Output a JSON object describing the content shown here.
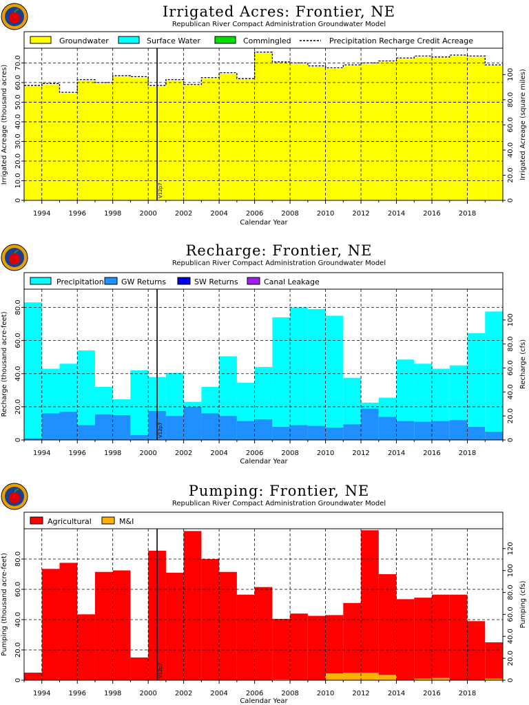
{
  "logo_icon": "apple-logo-icon",
  "chart_data": [
    {
      "type": "bar",
      "title": "Irrigated Acres: Frontier, NE",
      "subtitle": "Republican River Compact Administration Groundwater Model",
      "xlabel": "Calendar Year",
      "ylabel": "Irrigated Acreage (thousand acres)",
      "ylabel_right": "Irrigated Acreage (square miles)",
      "xlim": [
        1993,
        2020
      ],
      "ylim": [
        0,
        77.5
      ],
      "ylim_right": [
        0,
        121
      ],
      "yticks": [
        0,
        10,
        20,
        30,
        40,
        50,
        60,
        70
      ],
      "ytick_labels": [
        "0",
        "10.0",
        "20.0",
        "30.0",
        "40.0",
        "50.0",
        "60.0",
        "70.0"
      ],
      "yticks_right": [
        0,
        20,
        40,
        60,
        80,
        100
      ],
      "ytick_labels_right": [
        "0",
        "20.0",
        "40.0",
        "60.0",
        "80.0",
        "100"
      ],
      "xticks": [
        1994,
        1996,
        1998,
        2000,
        2002,
        2004,
        2006,
        2008,
        2010,
        2012,
        2014,
        2016,
        2018
      ],
      "marker": {
        "x": 2000.5,
        "label": "V12p7"
      },
      "grid": true,
      "legend_placement": "top",
      "legend": [
        {
          "label": "Groundwater",
          "color": "#ffff00",
          "kind": "box"
        },
        {
          "label": "Surface Water",
          "color": "#00ffff",
          "kind": "box"
        },
        {
          "label": "Commingled",
          "color": "#00dd00",
          "kind": "box"
        },
        {
          "label": "Precipitation Recharge Credit Acreage",
          "color": "#000000",
          "kind": "dash"
        }
      ],
      "years": [
        1993,
        1994,
        1995,
        1996,
        1997,
        1998,
        1999,
        2000,
        2001,
        2002,
        2003,
        2004,
        2005,
        2006,
        2007,
        2008,
        2009,
        2010,
        2011,
        2012,
        2013,
        2014,
        2015,
        2016,
        2017,
        2018,
        2019
      ],
      "series": [
        {
          "name": "Groundwater",
          "color": "#ffff00",
          "values": [
            58.0,
            59.0,
            54.5,
            61.0,
            59.5,
            63.0,
            62.5,
            58.0,
            61.0,
            58.5,
            62.0,
            64.5,
            61.5,
            75.0,
            70.0,
            69.5,
            68.0,
            67.0,
            68.5,
            69.5,
            70.5,
            72.0,
            73.0,
            72.5,
            73.5,
            73.0,
            68.5
          ]
        },
        {
          "name": "Surface Water",
          "color": "#00ffff",
          "values": [
            0,
            0,
            0,
            0,
            0,
            0,
            0,
            0,
            0,
            0,
            0,
            0,
            0,
            0,
            0,
            0,
            0,
            0,
            0,
            0,
            0,
            0,
            0,
            0,
            0,
            0,
            0
          ]
        },
        {
          "name": "Commingled",
          "color": "#00dd00",
          "values": [
            0,
            0,
            0,
            0,
            0,
            0,
            0,
            0,
            0,
            0,
            0,
            0,
            0,
            0,
            0,
            0,
            0,
            0,
            0,
            0,
            0,
            0,
            0,
            0,
            0,
            0,
            0
          ]
        }
      ],
      "line": {
        "name": "Precipitation Recharge Credit Acreage",
        "values": [
          58.5,
          59.5,
          55.0,
          61.5,
          60.0,
          63.5,
          63.0,
          58.5,
          61.5,
          59.0,
          62.5,
          65.0,
          62.0,
          75.5,
          70.5,
          70.0,
          68.5,
          67.5,
          69.0,
          70.0,
          71.0,
          72.5,
          73.5,
          73.0,
          74.0,
          73.5,
          69.0
        ]
      }
    },
    {
      "type": "bar",
      "title": "Recharge: Frontier, NE",
      "subtitle": "Republican River Compact Administration Groundwater Model",
      "xlabel": "Calendar Year",
      "ylabel": "Recharge (thousand acre-feet)",
      "ylabel_right": "Recharge (cfs)",
      "xlim": [
        1993,
        2020
      ],
      "ylim": [
        0,
        91
      ],
      "ylim_right": [
        0,
        125.7
      ],
      "yticks": [
        0,
        20,
        40,
        60,
        80
      ],
      "ytick_labels": [
        "0",
        "20.0",
        "40.0",
        "60.0",
        "80.0"
      ],
      "yticks_right": [
        0,
        20,
        40,
        60,
        80,
        100
      ],
      "ytick_labels_right": [
        "0",
        "20.0",
        "40.0",
        "60.0",
        "80.0",
        "100"
      ],
      "xticks": [
        1994,
        1996,
        1998,
        2000,
        2002,
        2004,
        2006,
        2008,
        2010,
        2012,
        2014,
        2016,
        2018
      ],
      "marker": {
        "x": 2000.5,
        "label": "V12p7"
      },
      "grid": true,
      "legend_placement": "top",
      "legend": [
        {
          "label": "Precipitation",
          "color": "#00ffff",
          "kind": "box"
        },
        {
          "label": "GW Returns",
          "color": "#1e90ff",
          "kind": "box"
        },
        {
          "label": "SW Returns",
          "color": "#0000ee",
          "kind": "box"
        },
        {
          "label": "Canal Leakage",
          "color": "#a020f0",
          "kind": "box"
        }
      ],
      "years": [
        1993,
        1994,
        1995,
        1996,
        1997,
        1998,
        1999,
        2000,
        2001,
        2002,
        2003,
        2004,
        2005,
        2006,
        2007,
        2008,
        2009,
        2010,
        2011,
        2012,
        2013,
        2014,
        2015,
        2016,
        2017,
        2018,
        2019
      ],
      "series": [
        {
          "name": "GW Returns",
          "color": "#1e90ff",
          "values": [
            1.0,
            16.0,
            17.0,
            9.0,
            15.5,
            15.0,
            3.0,
            17.5,
            14.5,
            20.0,
            16.0,
            14.5,
            11.5,
            12.5,
            8.0,
            9.0,
            8.5,
            7.5,
            9.5,
            19.0,
            14.0,
            11.5,
            11.0,
            11.5,
            12.0,
            8.0,
            5.0
          ]
        },
        {
          "name": "Precipitation",
          "color": "#00ffff",
          "values": [
            82.0,
            27.0,
            29.0,
            45.0,
            16.5,
            9.5,
            39.0,
            20.5,
            26.0,
            3.0,
            16.0,
            36.0,
            23.0,
            31.5,
            66.0,
            71.0,
            70.5,
            67.5,
            28.0,
            3.5,
            11.5,
            37.0,
            35.0,
            31.5,
            33.0,
            56.5,
            72.5
          ]
        },
        {
          "name": "SW Returns",
          "color": "#0000ee",
          "values": [
            0,
            0,
            0,
            0,
            0,
            0,
            0,
            0,
            0,
            0,
            0,
            0,
            0,
            0,
            0,
            0,
            0,
            0,
            0,
            0,
            0,
            0,
            0,
            0,
            0,
            0,
            0
          ]
        },
        {
          "name": "Canal Leakage",
          "color": "#a020f0",
          "values": [
            0,
            0,
            0,
            0,
            0,
            0,
            0,
            0,
            0,
            0,
            0,
            0,
            0,
            0,
            0,
            0,
            0,
            0,
            0,
            0,
            0,
            0,
            0,
            0,
            0,
            0,
            0
          ]
        }
      ]
    },
    {
      "type": "bar",
      "title": "Pumping: Frontier, NE",
      "subtitle": "Republican River Compact Administration Groundwater Model",
      "xlabel": "Calendar Year",
      "ylabel": "Pumping (thousand acre-feet)",
      "ylabel_right": "Pumping (cfs)",
      "xlim": [
        1993,
        2020
      ],
      "ylim": [
        0,
        100
      ],
      "ylim_right": [
        0,
        138.1
      ],
      "yticks": [
        0,
        20,
        40,
        60,
        80
      ],
      "ytick_labels": [
        "0",
        "20.0",
        "40.0",
        "60.0",
        "80.0"
      ],
      "yticks_right": [
        0,
        20,
        40,
        60,
        80,
        100,
        120
      ],
      "ytick_labels_right": [
        "0",
        "20.0",
        "40.0",
        "60.0",
        "80.0",
        "100",
        "120"
      ],
      "xticks": [
        1994,
        1996,
        1998,
        2000,
        2002,
        2004,
        2006,
        2008,
        2010,
        2012,
        2014,
        2016,
        2018
      ],
      "marker": {
        "x": 2000.5,
        "label": "V12p7"
      },
      "grid": true,
      "legend_placement": "top",
      "legend": [
        {
          "label": "Agricultural",
          "color": "#ff0000",
          "kind": "box"
        },
        {
          "label": "M&I",
          "color": "#ffb000",
          "kind": "box"
        }
      ],
      "years": [
        1993,
        1994,
        1995,
        1996,
        1997,
        1998,
        1999,
        2000,
        2001,
        2002,
        2003,
        2004,
        2005,
        2006,
        2007,
        2008,
        2009,
        2010,
        2011,
        2012,
        2013,
        2014,
        2015,
        2016,
        2017,
        2018,
        2019
      ],
      "series": [
        {
          "name": "M&I",
          "color": "#ffb000",
          "values": [
            0,
            0,
            0,
            0,
            0,
            0,
            0,
            0,
            0,
            0,
            0,
            0,
            0,
            0,
            0.5,
            0,
            0,
            4.5,
            5.0,
            5.0,
            3.5,
            0,
            1.0,
            1.5,
            0,
            0,
            1.0
          ]
        },
        {
          "name": "Agricultural",
          "color": "#ff0000",
          "values": [
            5.0,
            73.5,
            77.5,
            43.5,
            71.5,
            72.5,
            15.0,
            85.5,
            71.0,
            98.5,
            80.0,
            71.5,
            56.5,
            61.5,
            40.0,
            44.0,
            42.5,
            38.5,
            46.0,
            94.0,
            66.5,
            53.5,
            53.5,
            55.0,
            56.5,
            39.0,
            24.0
          ]
        }
      ]
    }
  ]
}
